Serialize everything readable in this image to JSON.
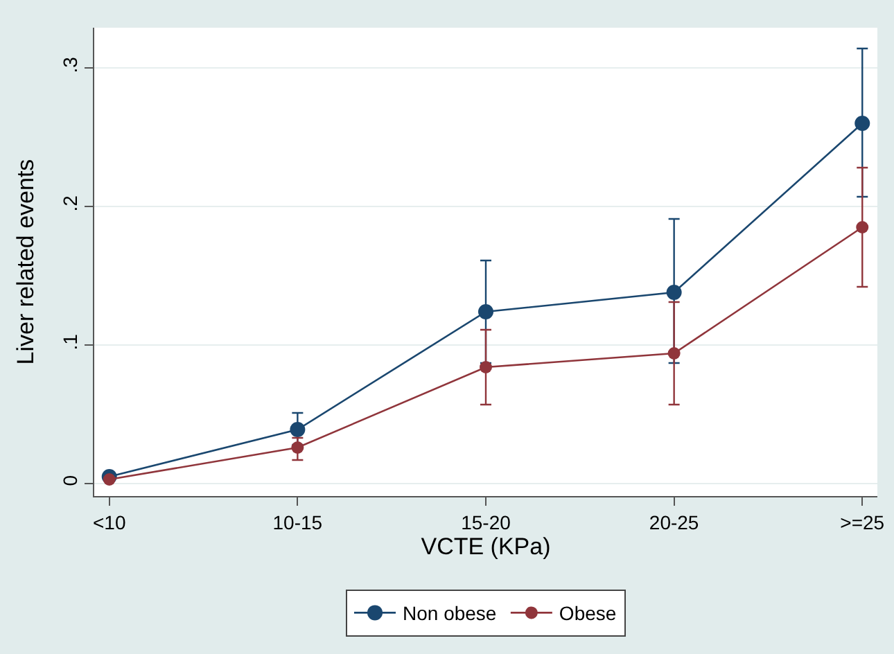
{
  "chart_data": {
    "type": "line",
    "xlabel": "VCTE (KPa)",
    "ylabel": "Liver related events",
    "categories": [
      "<10",
      "10-15",
      "15-20",
      "20-25",
      ">=25"
    ],
    "series": [
      {
        "name": "Non obese",
        "color": "#1a476f",
        "values": [
          0.005,
          0.039,
          0.124,
          0.138,
          0.26
        ],
        "errors": [
          null,
          [
            0.028,
            0.051
          ],
          [
            0.087,
            0.161
          ],
          [
            0.087,
            0.191
          ],
          [
            0.207,
            0.314
          ]
        ]
      },
      {
        "name": "Obese",
        "color": "#90353b",
        "values": [
          0.003,
          0.026,
          0.084,
          0.094,
          0.185
        ],
        "errors": [
          null,
          [
            0.017,
            0.033
          ],
          [
            0.057,
            0.111
          ],
          [
            0.057,
            0.131
          ],
          [
            0.142,
            0.228
          ]
        ]
      }
    ],
    "ylim": [
      -0.009,
      0.329
    ],
    "yticks": [
      0,
      {
        "value": 0.1,
        "label": ".1"
      },
      {
        "value": 0.2,
        "label": ".2"
      },
      {
        "value": 0.3,
        "label": ".3"
      }
    ],
    "grid": "y",
    "legend": "bottom",
    "marker": "circle",
    "line_style": "solid"
  }
}
